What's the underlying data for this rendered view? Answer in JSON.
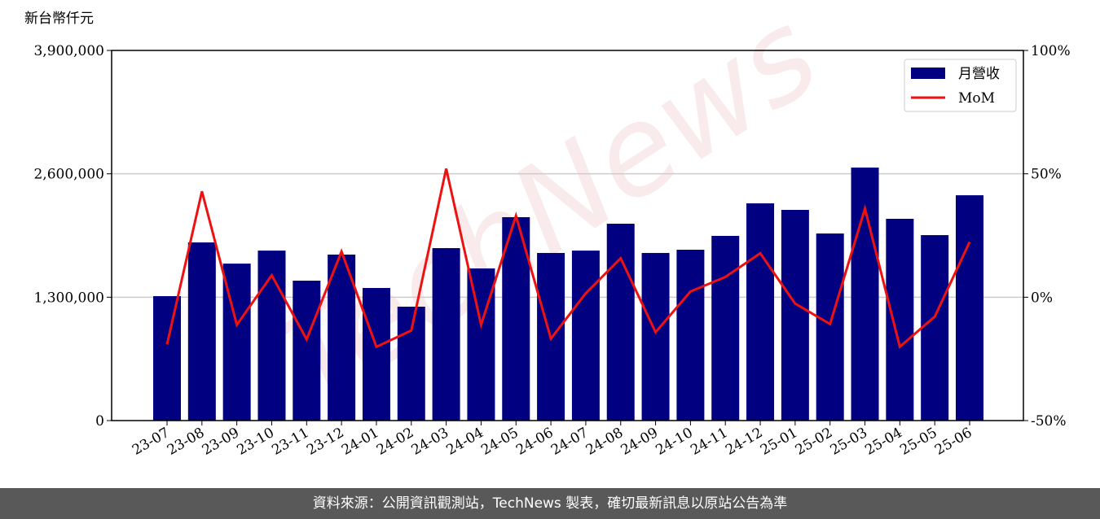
{
  "chart_data": {
    "type": "bar_line",
    "watermark": "TechNews",
    "y_label": "新台幣仟元",
    "categories": [
      "23-07",
      "23-08",
      "23-09",
      "23-10",
      "23-11",
      "23-12",
      "24-01",
      "24-02",
      "24-03",
      "24-04",
      "24-05",
      "24-06",
      "24-07",
      "24-08",
      "24-09",
      "24-10",
      "24-11",
      "24-12",
      "25-01",
      "25-02",
      "25-03",
      "25-04",
      "25-05",
      "25-06"
    ],
    "series": [
      {
        "name": "月營收",
        "color": "#000080",
        "type": "bar",
        "values": [
          1311000,
          1877000,
          1654000,
          1791000,
          1474000,
          1749000,
          1397000,
          1200000,
          1817000,
          1603000,
          2143000,
          1766000,
          1791000,
          2074000,
          1766000,
          1800000,
          1946000,
          2289000,
          2220000,
          1971000,
          2666000,
          2126000,
          1954000,
          2374000
        ]
      },
      {
        "name": "MoM",
        "color": "#ee1111",
        "type": "line",
        "axis": "y2",
        "values": [
          -19.1,
          42.9,
          -11.2,
          8.9,
          -17.1,
          18.5,
          -20.1,
          -13.5,
          52.1,
          -11.2,
          33.0,
          -16.8,
          1.6,
          15.8,
          -14.2,
          2.3,
          8.2,
          17.8,
          -2.6,
          -10.9,
          35.9,
          -20.1,
          -7.9,
          22.4
        ]
      }
    ],
    "ylim": [
      0,
      3900000
    ],
    "yticks": [
      0,
      {
        "value": 1300000,
        "label": "1,300,000"
      },
      {
        "value": 2600000,
        "label": "2,600,000"
      },
      {
        "value": 3900000,
        "label": "3,900,000"
      }
    ],
    "y2lim": [
      -50,
      100
    ],
    "y2ticks": [
      {
        "value": -50,
        "label": "-50%"
      },
      {
        "value": 0,
        "label": "0%"
      },
      {
        "value": 50,
        "label": "50%"
      },
      {
        "value": 100,
        "label": "100%"
      }
    ],
    "grid": true,
    "legend": "upper right"
  },
  "footer": "資料來源：公開資訊觀測站，TechNews 製表，確切最新訊息以原站公告為準"
}
